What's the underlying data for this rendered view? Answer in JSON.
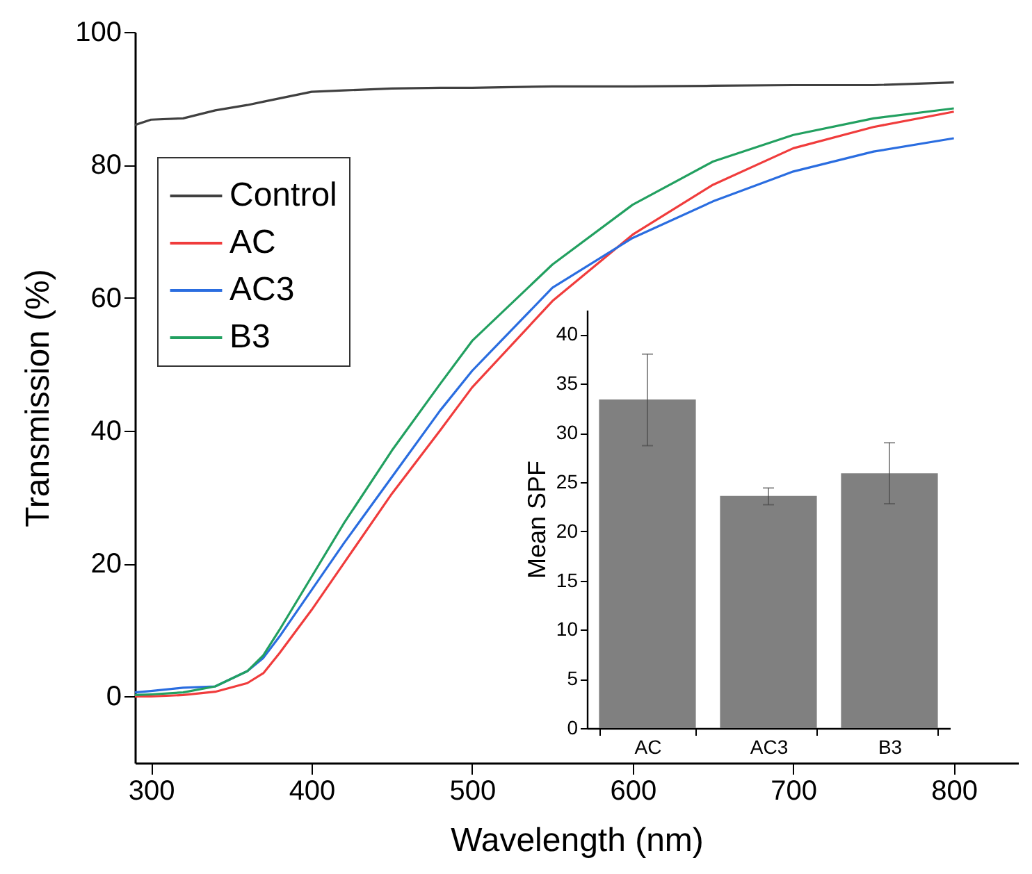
{
  "chart_data": [
    {
      "type": "line",
      "xlabel": "Wavelength (nm)",
      "ylabel": "Transmission (%)",
      "xlim": [
        290,
        840
      ],
      "ylim": [
        -10,
        100
      ],
      "xticks": [
        300,
        400,
        500,
        600,
        700,
        800
      ],
      "yticks": [
        0,
        20,
        40,
        60,
        80,
        100
      ],
      "legend": "top left",
      "grid": false,
      "x": [
        290,
        300,
        320,
        340,
        360,
        370,
        380,
        400,
        420,
        450,
        480,
        500,
        550,
        600,
        650,
        700,
        750,
        800
      ],
      "series": [
        {
          "name": "Control",
          "color": "#404040",
          "values": [
            86,
            86.8,
            87,
            88.2,
            89,
            89.5,
            90,
            91,
            91.2,
            91.5,
            91.6,
            91.6,
            91.8,
            91.8,
            91.9,
            92,
            92,
            92.4
          ]
        },
        {
          "name": "AC",
          "color": "#f03c3c",
          "values": [
            0,
            0,
            0.2,
            0.7,
            2,
            3.5,
            6.5,
            13,
            20,
            30.5,
            40,
            46.5,
            59.5,
            69.5,
            77,
            82.5,
            85.7,
            88
          ]
        },
        {
          "name": "AC3",
          "color": "#2a6de0",
          "values": [
            0.6,
            0.8,
            1.3,
            1.5,
            3.8,
            5.8,
            9,
            16,
            23,
            33,
            43,
            49,
            61.5,
            69,
            74.5,
            79,
            82,
            84
          ]
        },
        {
          "name": "B3",
          "color": "#22a060",
          "values": [
            0.2,
            0.3,
            0.6,
            1.5,
            3.8,
            6.2,
            10,
            18,
            26,
            37,
            47,
            53.5,
            65,
            74,
            80.5,
            84.5,
            87,
            88.5
          ]
        }
      ]
    },
    {
      "type": "bar",
      "ylabel": "Mean SPF",
      "categories": [
        "AC",
        "AC3",
        "B3"
      ],
      "values": [
        33.4,
        23.6,
        25.9
      ],
      "color": "#808080",
      "errors": [
        [
          28.7,
          38
        ],
        [
          22.7,
          24.4
        ],
        [
          22.8,
          29
        ]
      ],
      "ylim": [
        0,
        42.5
      ],
      "yticks": [
        0,
        5,
        10,
        15,
        20,
        25,
        30,
        35,
        40
      ],
      "grid": false
    }
  ]
}
